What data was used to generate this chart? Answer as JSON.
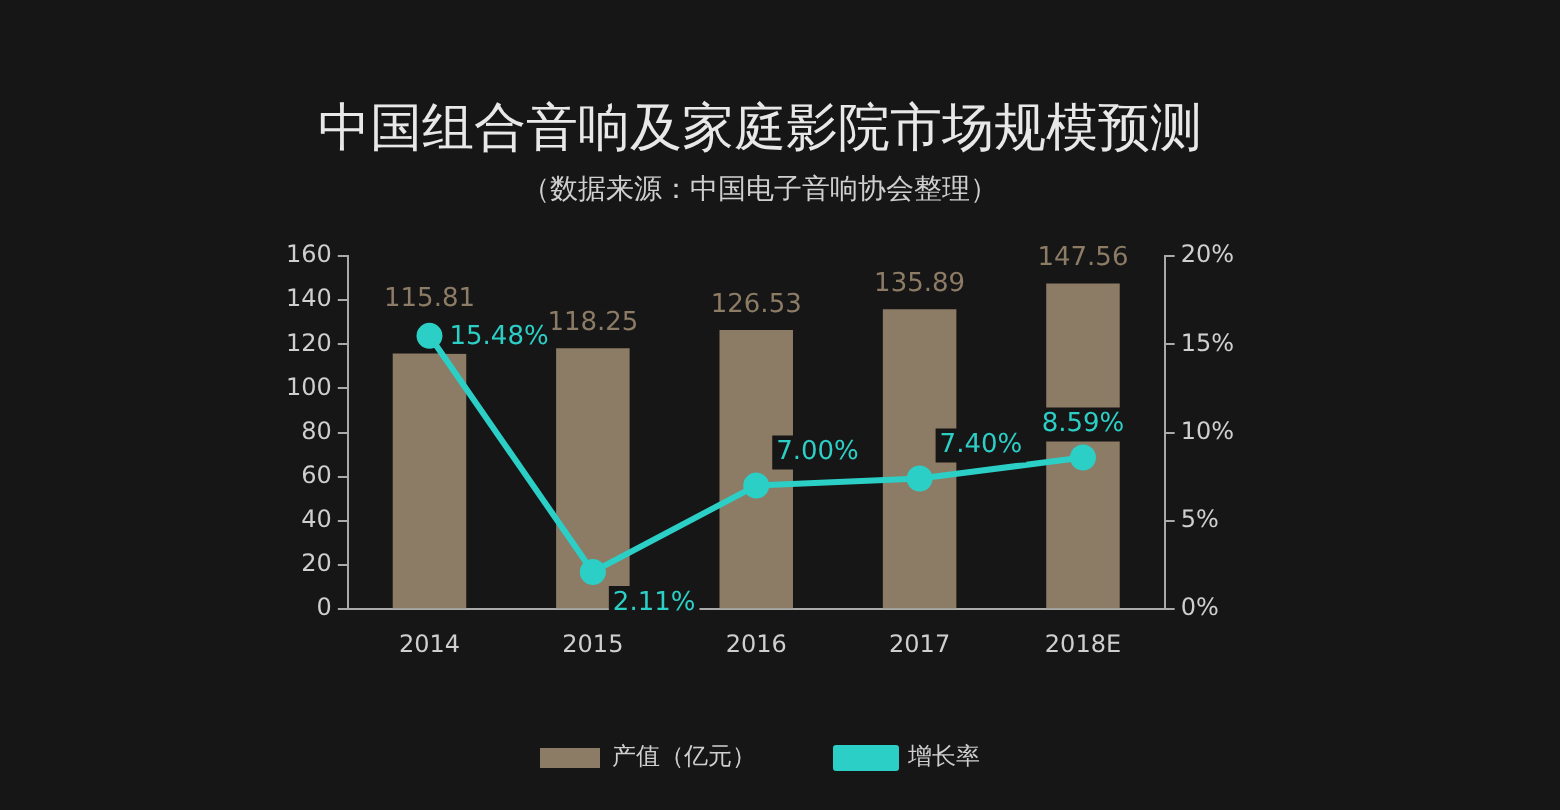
{
  "chart_data": {
    "type": "bar",
    "title": "中国组合音响及家庭影院市场规模预测",
    "subtitle": "（数据来源：中国电子音响协会整理）",
    "categories": [
      "2014",
      "2015",
      "2016",
      "2017",
      "2018E"
    ],
    "series": [
      {
        "name": "产值（亿元）",
        "color": "#8c7b65",
        "values": [
          115.81,
          118.25,
          126.53,
          135.89,
          147.56
        ],
        "value_labels": [
          "115.81",
          "118.25",
          "126.53",
          "135.89",
          "147.56"
        ]
      },
      {
        "name": "增长率",
        "type": "line",
        "axis": "y2",
        "color": "#2ccfc6",
        "marker": "circle",
        "values": [
          15.48,
          2.11,
          7.0,
          7.4,
          8.59
        ],
        "value_labels": [
          "15.48%",
          "2.11%",
          "7.00%",
          "7.40%",
          "8.59%"
        ]
      }
    ],
    "ylim": [
      0,
      160
    ],
    "yticks": [
      0,
      20,
      40,
      60,
      80,
      100,
      120,
      140,
      160
    ],
    "y2lim": [
      0,
      20
    ],
    "y2ticks": [
      {
        "value": 0,
        "label": "0%"
      },
      {
        "value": 5,
        "label": "5%"
      },
      {
        "value": 10,
        "label": "10%"
      },
      {
        "value": 15,
        "label": "15%"
      },
      {
        "value": 20,
        "label": "20%"
      }
    ],
    "grid": false,
    "legend": "bottom"
  }
}
